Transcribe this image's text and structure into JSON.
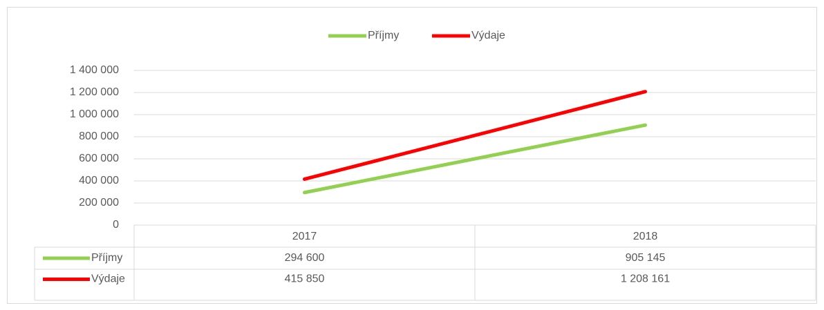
{
  "chart_data": {
    "type": "line",
    "categories": [
      "2017",
      "2018"
    ],
    "series": [
      {
        "name": "Příjmy",
        "color": "#92d050",
        "values": [
          294600,
          905145
        ],
        "value_labels": [
          "294 600",
          "905 145"
        ]
      },
      {
        "name": "Výdaje",
        "color": "#ff0000",
        "values": [
          415850,
          1208161
        ],
        "value_labels": [
          "415 850",
          "1 208 161"
        ]
      }
    ],
    "ylim": [
      0,
      1400000
    ],
    "yticks": [
      0,
      {
        "value": 200000,
        "label": "200 000"
      },
      {
        "value": 400000,
        "label": "400 000"
      },
      {
        "value": 600000,
        "label": "600 000"
      },
      {
        "value": 800000,
        "label": "800 000"
      },
      {
        "value": 1000000,
        "label": "1 000 000"
      },
      {
        "value": 1200000,
        "label": "1 200 000"
      },
      {
        "value": 1400000,
        "label": "1 400 000"
      }
    ],
    "grid": true,
    "legend": "top",
    "data_table": true
  }
}
